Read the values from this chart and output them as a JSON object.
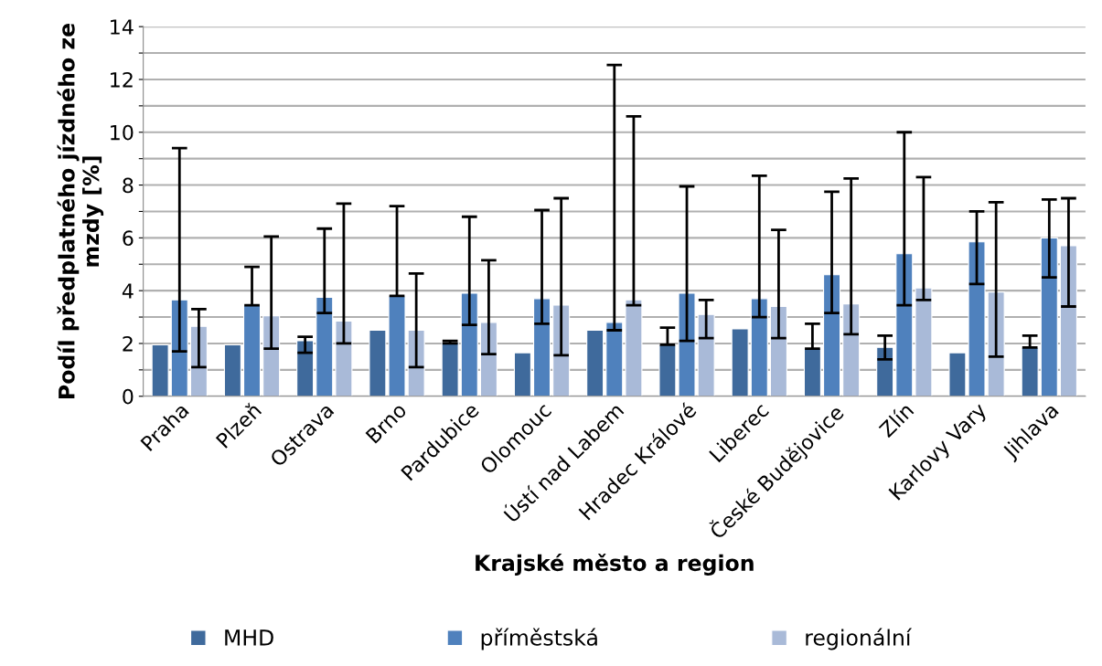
{
  "chart_data": {
    "type": "bar",
    "xlabel": "Krajské město a region",
    "ylabel": "Podíl předplatného jízdného ze mzdy [%]",
    "categories": [
      "Praha",
      "Plzeň",
      "Ostrava",
      "Brno",
      "Pardubice",
      "Olomouc",
      "Ústí nad Labem",
      "Hradec Králové",
      "Liberec",
      "České Budějovice",
      "Zlín",
      "Karlovy Vary",
      "Jihlava"
    ],
    "series": [
      {
        "name": "MHD",
        "color": "#3f6a9c",
        "values": [
          1.95,
          1.95,
          2.1,
          2.5,
          2.05,
          1.65,
          2.5,
          1.95,
          2.55,
          1.8,
          1.85,
          1.65,
          1.85
        ],
        "errors": [
          null,
          null,
          [
            1.65,
            2.25
          ],
          null,
          [
            2.0,
            2.1
          ],
          null,
          null,
          [
            1.95,
            2.6
          ],
          null,
          [
            1.8,
            2.75
          ],
          [
            1.4,
            2.3
          ],
          null,
          [
            1.85,
            2.3
          ]
        ]
      },
      {
        "name": "příměstská",
        "color": "#4f81bd",
        "values": [
          3.65,
          3.45,
          3.75,
          3.8,
          3.9,
          3.7,
          2.8,
          3.9,
          3.7,
          4.6,
          5.4,
          5.85,
          6.0
        ],
        "errors": [
          [
            1.7,
            9.4
          ],
          [
            3.45,
            4.9
          ],
          [
            3.15,
            6.35
          ],
          [
            3.8,
            7.2
          ],
          [
            2.7,
            6.8
          ],
          [
            2.75,
            7.05
          ],
          [
            2.5,
            12.55
          ],
          [
            2.1,
            7.95
          ],
          [
            3.0,
            8.35
          ],
          [
            3.15,
            7.75
          ],
          [
            3.45,
            10.0
          ],
          [
            4.25,
            7.0
          ],
          [
            4.5,
            7.45
          ]
        ]
      },
      {
        "name": "regionální",
        "color": "#a9bad8",
        "values": [
          2.65,
          3.05,
          2.85,
          2.5,
          2.8,
          3.45,
          3.65,
          3.1,
          3.4,
          3.5,
          4.1,
          3.95,
          5.7
        ],
        "errors": [
          [
            1.1,
            3.3
          ],
          [
            1.8,
            6.05
          ],
          [
            2.0,
            7.3
          ],
          [
            1.1,
            4.65
          ],
          [
            1.6,
            5.15
          ],
          [
            1.55,
            7.5
          ],
          [
            3.45,
            10.6
          ],
          [
            2.2,
            3.65
          ],
          [
            2.2,
            6.3
          ],
          [
            2.35,
            8.25
          ],
          [
            3.65,
            8.3
          ],
          [
            1.5,
            7.35
          ],
          [
            3.4,
            7.5
          ]
        ]
      }
    ],
    "ylim": [
      0,
      14
    ],
    "yticks": [
      0,
      {
        "value": 1,
        "label": null
      },
      2,
      {
        "value": 3,
        "label": null
      },
      4,
      {
        "value": 5,
        "label": null
      },
      6,
      {
        "value": 7,
        "label": null
      },
      8,
      {
        "value": 9,
        "label": null
      },
      10,
      {
        "value": 11,
        "label": null
      },
      12,
      {
        "value": 13,
        "label": null
      },
      14
    ],
    "grid": "y",
    "legend": "bottom"
  }
}
